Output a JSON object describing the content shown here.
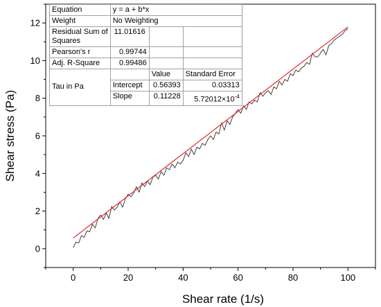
{
  "chart_data": {
    "type": "line",
    "xlabel": "Shear rate (1/s)",
    "ylabel": "Shear stress (Pa)",
    "xlim": [
      -10,
      110
    ],
    "ylim": [
      -1,
      13
    ],
    "x_ticks": [
      0,
      20,
      40,
      60,
      80,
      100
    ],
    "y_ticks": [
      0,
      2,
      4,
      6,
      8,
      10,
      12
    ],
    "grid": false,
    "series": [
      {
        "role": "measured",
        "color": "#404040",
        "x": [
          0,
          1,
          2,
          3,
          4,
          5,
          6,
          7,
          8,
          9,
          10,
          11,
          12,
          13,
          14,
          15,
          16,
          17,
          18,
          19,
          20,
          21,
          22,
          23,
          24,
          25,
          26,
          27,
          28,
          29,
          30,
          31,
          32,
          33,
          34,
          35,
          36,
          37,
          38,
          39,
          40,
          41,
          42,
          43,
          44,
          45,
          46,
          47,
          48,
          49,
          50,
          51,
          52,
          53,
          54,
          55,
          56,
          57,
          58,
          59,
          60,
          61,
          62,
          63,
          64,
          65,
          66,
          67,
          68,
          69,
          70,
          71,
          72,
          73,
          74,
          75,
          76,
          77,
          78,
          79,
          80,
          81,
          82,
          83,
          84,
          85,
          86,
          87,
          88,
          89,
          90,
          91,
          92,
          93,
          94,
          95,
          96,
          97,
          98,
          99,
          100
        ],
        "y": [
          0.05,
          0.35,
          0.3,
          0.7,
          0.6,
          0.95,
          0.9,
          1.3,
          1.1,
          1.6,
          1.8,
          1.55,
          1.9,
          1.6,
          2.25,
          2.05,
          2.2,
          2.5,
          2.2,
          2.65,
          2.9,
          2.75,
          2.95,
          3.3,
          3.0,
          3.5,
          3.3,
          3.6,
          3.4,
          3.8,
          3.9,
          3.7,
          4.1,
          3.9,
          4.3,
          4.2,
          4.5,
          4.3,
          4.6,
          4.5,
          4.7,
          5.1,
          4.9,
          5.3,
          5.0,
          5.4,
          5.3,
          5.6,
          5.5,
          5.8,
          6.0,
          5.8,
          6.2,
          6.1,
          6.7,
          6.3,
          6.8,
          6.6,
          7.0,
          7.2,
          7.4,
          7.2,
          7.6,
          7.4,
          7.8,
          7.7,
          7.9,
          7.8,
          8.3,
          8.1,
          8.3,
          8.4,
          8.2,
          8.6,
          8.5,
          8.9,
          8.7,
          9.0,
          8.9,
          9.3,
          9.2,
          9.5,
          9.4,
          9.6,
          9.7,
          9.9,
          9.8,
          10.4,
          10.2,
          10.2,
          10.4,
          10.6,
          10.3,
          10.8,
          10.9,
          11.1,
          11.2,
          11.3,
          11.4,
          11.6,
          11.7
        ]
      },
      {
        "role": "linear-fit",
        "color": "#e3262a",
        "intercept": 0.56393,
        "slope": 0.11228,
        "x": [
          0,
          100
        ]
      }
    ]
  },
  "fit_table": {
    "equation_label": "Equation",
    "equation_value": "y = a + b*x",
    "weight_label": "Weight",
    "weight_value": "No Weighting",
    "rss_label_1": "Residual Sum of",
    "rss_label_2": "Squares",
    "rss_value": "11.01616",
    "pearson_label": "Pearson's r",
    "pearson_value": "0.99744",
    "adjr2_label": "Adj. R-Square",
    "adjr2_value": "0.99486",
    "value_header": "Value",
    "stderr_header": "Standard Error",
    "group_label": "Tau  in Pa",
    "intercept_label": "Intercept",
    "intercept_value": "0.56393",
    "intercept_se": "0.03313",
    "slope_label": "Slope",
    "slope_value": "0.11228",
    "slope_se_mantissa": "5.72012×10",
    "slope_se_exponent": "-4"
  }
}
